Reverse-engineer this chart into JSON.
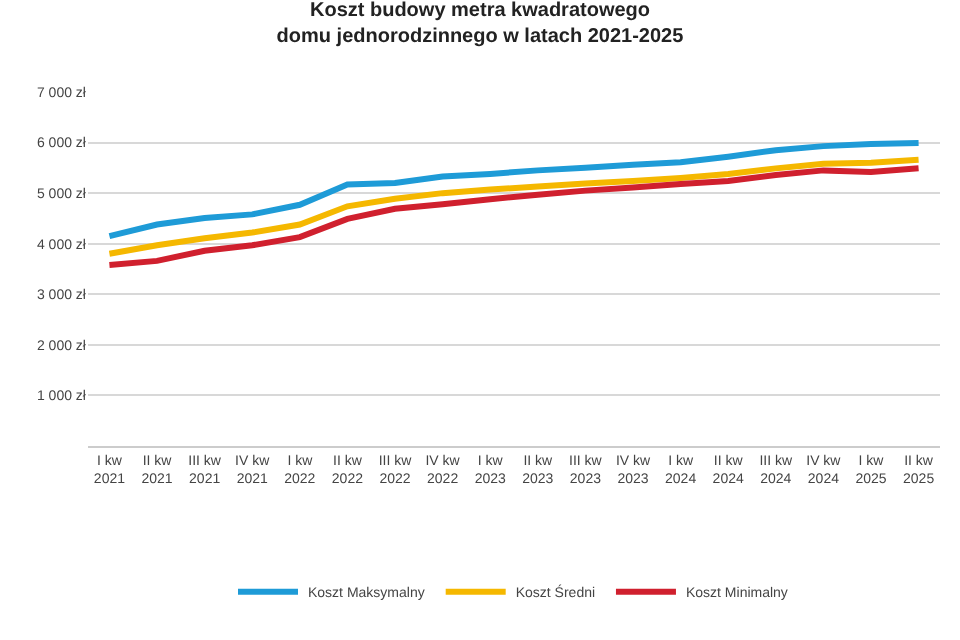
{
  "chart_data": {
    "type": "line",
    "title": "Koszt budowy metra kwadratowego\ndomu jednorodzinnego w latach 2021-2025",
    "categories": [
      "I kw\n2021",
      "II kw\n2021",
      "III kw\n2021",
      "IV kw\n2021",
      "I kw\n2022",
      "II kw\n2022",
      "III kw\n2022",
      "IV kw\n2022",
      "I kw\n2023",
      "II kw\n2023",
      "III kw\n2023",
      "IV kw\n2023",
      "I kw\n2024",
      "II kw\n2024",
      "III kw\n2024",
      "IV kw\n2024",
      "I kw\n2025",
      "II kw\n2025"
    ],
    "series": [
      {
        "name": "Koszt Maksymalny",
        "color": "#1e9bd7",
        "values": [
          4150,
          4380,
          4510,
          4580,
          4770,
          5170,
          5200,
          5330,
          5380,
          5450,
          5500,
          5560,
          5610,
          5720,
          5850,
          5930,
          5970,
          5990
        ]
      },
      {
        "name": "Koszt Średni",
        "color": "#f5b800",
        "values": [
          3800,
          3970,
          4110,
          4220,
          4380,
          4740,
          4890,
          5000,
          5070,
          5130,
          5190,
          5240,
          5300,
          5380,
          5490,
          5580,
          5600,
          5660
        ]
      },
      {
        "name": "Koszt Minimalny",
        "color": "#d0202e",
        "values": [
          3580,
          3660,
          3860,
          3970,
          4130,
          4490,
          4690,
          4780,
          4880,
          4970,
          5050,
          5110,
          5180,
          5240,
          5360,
          5450,
          5420,
          5490
        ]
      }
    ],
    "ylim": [
      0,
      7000
    ],
    "yticks": [
      {
        "value": 1000,
        "label": "1 000 zł"
      },
      {
        "value": 2000,
        "label": "2 000 zł"
      },
      {
        "value": 3000,
        "label": "3 000 zł"
      },
      {
        "value": 4000,
        "label": "4 000 zł"
      },
      {
        "value": 5000,
        "label": "5 000 zł"
      },
      {
        "value": 6000,
        "label": "6 000 zł"
      },
      {
        "value": 7000,
        "label": "7 000 zł"
      }
    ],
    "grid": "y",
    "legend": "bottom",
    "marker": "none",
    "line_style": "solid"
  }
}
